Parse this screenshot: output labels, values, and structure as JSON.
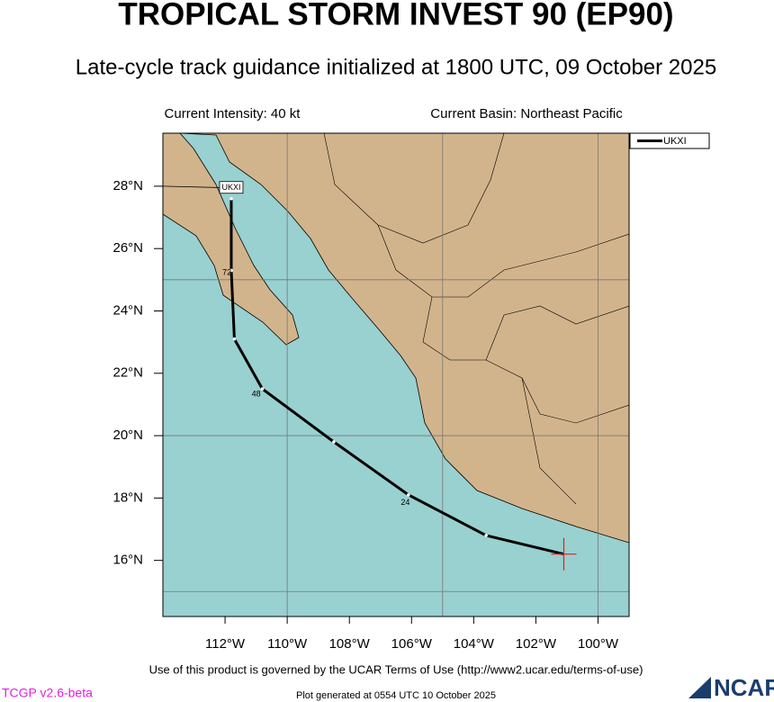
{
  "header": {
    "title": "TROPICAL STORM INVEST 90 (EP90)",
    "subtitle": "Late-cycle track guidance initialized at 1800 UTC, 09 October 2025",
    "intensity": "Current Intensity: 40 kt",
    "basin": "Current Basin: Northeast Pacific"
  },
  "chart_data": {
    "type": "track",
    "xlim": [
      -114,
      -99
    ],
    "ylim": [
      14.2,
      29.7
    ],
    "xticks": [
      {
        "value": -112,
        "label": "112°W"
      },
      {
        "value": -110,
        "label": "110°W"
      },
      {
        "value": -108,
        "label": "108°W"
      },
      {
        "value": -106,
        "label": "106°W"
      },
      {
        "value": -104,
        "label": "104°W"
      },
      {
        "value": -102,
        "label": "102°W"
      },
      {
        "value": -100,
        "label": "100°W"
      }
    ],
    "yticks": [
      {
        "value": 16,
        "label": "16°N"
      },
      {
        "value": 18,
        "label": "18°N"
      },
      {
        "value": 20,
        "label": "20°N"
      },
      {
        "value": 22,
        "label": "22°N"
      },
      {
        "value": 24,
        "label": "24°N"
      },
      {
        "value": 26,
        "label": "26°N"
      },
      {
        "value": 28,
        "label": "28°N"
      }
    ],
    "grid_lons": [
      -110,
      -105,
      -100
    ],
    "grid_lats": [
      15,
      20,
      25
    ],
    "series": [
      {
        "name": "UKXI",
        "color": "#000000",
        "x": [
          -101.1,
          -103.6,
          -106.1,
          -108.5,
          -110.8,
          -111.7,
          -111.8,
          -111.8
        ],
        "y": [
          16.2,
          16.8,
          18.1,
          19.8,
          21.5,
          23.1,
          25.3,
          27.6
        ]
      }
    ],
    "hour_labels": [
      {
        "label": "24",
        "x": -106.2,
        "y": 17.85
      },
      {
        "label": "48",
        "x": -111.0,
        "y": 21.32
      },
      {
        "label": "72",
        "x": -111.94,
        "y": 25.22
      }
    ]
  },
  "footer": {
    "terms": "Use of this product is governed by the UCAR Terms of Use (http://www2.ucar.edu/terms-of-use)",
    "version": "TCGP v2.6-beta",
    "generated": "Plot generated at 0554 UTC   10 October 2025",
    "logo": "NCAR"
  }
}
